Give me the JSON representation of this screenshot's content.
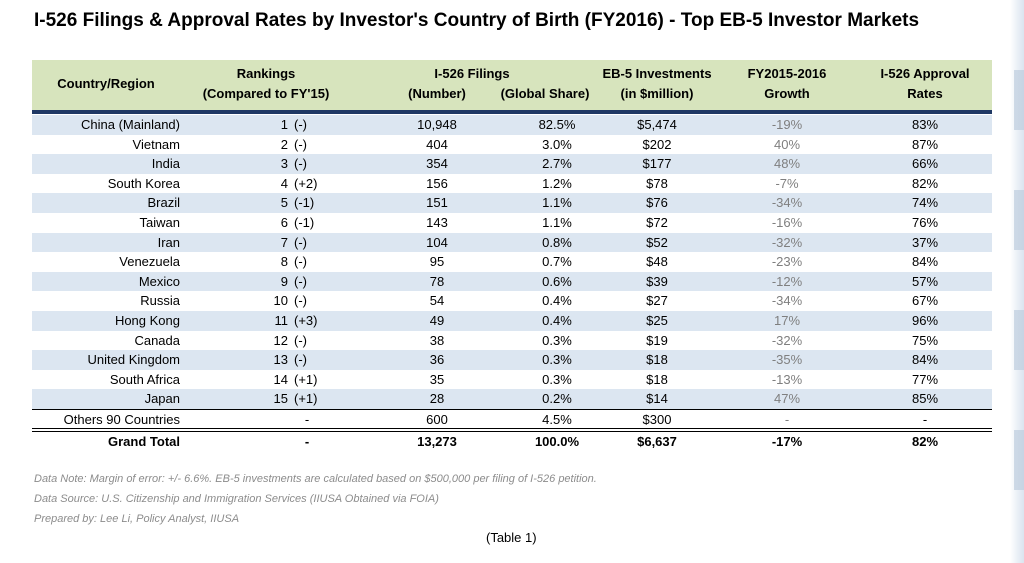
{
  "title": "I-526 Filings & Approval Rates by Investor's Country of Birth (FY2016) - Top EB-5 Investor Markets",
  "header": {
    "country": "Country/Region",
    "rankings_line1": "Rankings",
    "rankings_line2": "(Compared to FY'15)",
    "filings_line1": "I-526 Filings",
    "filings_number": "(Number)",
    "filings_share": "(Global Share)",
    "investments_line1": "EB-5 Investments",
    "investments_line2": "(in $million)",
    "growth_line1": "FY2015-2016",
    "growth_line2": "Growth",
    "rate_line1": "I-526 Approval",
    "rate_line2": "Rates"
  },
  "rows": [
    {
      "country": "China (Mainland)",
      "rank": "1",
      "change": "(-)",
      "number": "10,948",
      "share": "82.5%",
      "investment": "$5,474",
      "growth": "-19%",
      "rate": "83%"
    },
    {
      "country": "Vietnam",
      "rank": "2",
      "change": "(-)",
      "number": "404",
      "share": "3.0%",
      "investment": "$202",
      "growth": "40%",
      "rate": "87%"
    },
    {
      "country": "India",
      "rank": "3",
      "change": "(-)",
      "number": "354",
      "share": "2.7%",
      "investment": "$177",
      "growth": "48%",
      "rate": "66%"
    },
    {
      "country": "South Korea",
      "rank": "4",
      "change": "(+2)",
      "number": "156",
      "share": "1.2%",
      "investment": "$78",
      "growth": "-7%",
      "rate": "82%"
    },
    {
      "country": "Brazil",
      "rank": "5",
      "change": "(-1)",
      "number": "151",
      "share": "1.1%",
      "investment": "$76",
      "growth": "-34%",
      "rate": "74%"
    },
    {
      "country": "Taiwan",
      "rank": "6",
      "change": "(-1)",
      "number": "143",
      "share": "1.1%",
      "investment": "$72",
      "growth": "-16%",
      "rate": "76%"
    },
    {
      "country": "Iran",
      "rank": "7",
      "change": "(-)",
      "number": "104",
      "share": "0.8%",
      "investment": "$52",
      "growth": "-32%",
      "rate": "37%"
    },
    {
      "country": "Venezuela",
      "rank": "8",
      "change": "(-)",
      "number": "95",
      "share": "0.7%",
      "investment": "$48",
      "growth": "-23%",
      "rate": "84%"
    },
    {
      "country": "Mexico",
      "rank": "9",
      "change": "(-)",
      "number": "78",
      "share": "0.6%",
      "investment": "$39",
      "growth": "-12%",
      "rate": "57%"
    },
    {
      "country": "Russia",
      "rank": "10",
      "change": "(-)",
      "number": "54",
      "share": "0.4%",
      "investment": "$27",
      "growth": "-34%",
      "rate": "67%"
    },
    {
      "country": "Hong Kong",
      "rank": "11",
      "change": "(+3)",
      "number": "49",
      "share": "0.4%",
      "investment": "$25",
      "growth": "17%",
      "rate": "96%"
    },
    {
      "country": "Canada",
      "rank": "12",
      "change": "(-)",
      "number": "38",
      "share": "0.3%",
      "investment": "$19",
      "growth": "-32%",
      "rate": "75%"
    },
    {
      "country": "United Kingdom",
      "rank": "13",
      "change": "(-)",
      "number": "36",
      "share": "0.3%",
      "investment": "$18",
      "growth": "-35%",
      "rate": "84%"
    },
    {
      "country": "South Africa",
      "rank": "14",
      "change": "(+1)",
      "number": "35",
      "share": "0.3%",
      "investment": "$18",
      "growth": "-13%",
      "rate": "77%"
    },
    {
      "country": "Japan",
      "rank": "15",
      "change": "(+1)",
      "number": "28",
      "share": "0.2%",
      "investment": "$14",
      "growth": "47%",
      "rate": "85%"
    }
  ],
  "others": {
    "country": "Others 90 Countries",
    "rank": "-",
    "number": "600",
    "share": "4.5%",
    "investment": "$300",
    "growth": "-",
    "rate": "-"
  },
  "grand_total": {
    "country": "Grand Total",
    "rank": "-",
    "number": "13,273",
    "share": "100.0%",
    "investment": "$6,637",
    "growth": "-17%",
    "rate": "82%"
  },
  "notes": {
    "data_note": "Data Note: Margin of error: +/- 6.6%. EB-5 investments are calculated based on $500,000 per filing of I-526 petition.",
    "data_source": "Data Source: U.S. Citizenship and Immigration Services (IIUSA Obtained via FOIA)",
    "prepared_by": "Prepared by: Lee Li, Policy Analyst, IIUSA"
  },
  "caption": "(Table 1)",
  "colors": {
    "header_bg": "#d7e4bd",
    "header_rule": "#1f3864",
    "alt_row": "#dce6f1",
    "growth_text": "#7f7f7f"
  }
}
